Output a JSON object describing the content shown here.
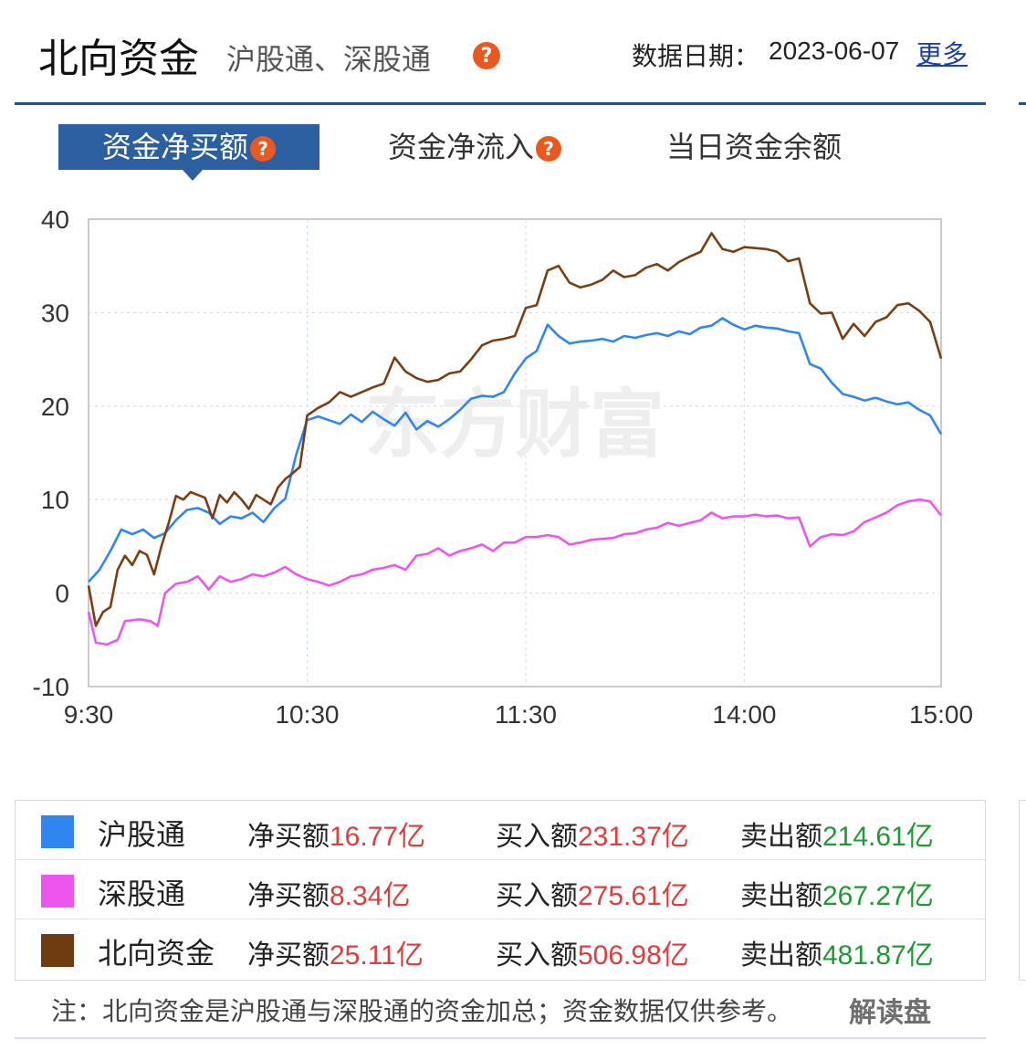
{
  "header": {
    "title": "北向资金",
    "subtitle": "沪股通、深股通",
    "date_label": "数据日期：",
    "date_value": "2023-06-07",
    "more_label": "更多",
    "help_glyph": "?"
  },
  "tabs": [
    {
      "label": "资金净买额",
      "active": true
    },
    {
      "label": "资金净流入",
      "active": false
    },
    {
      "label": "当日资金余额",
      "active": false
    }
  ],
  "watermark": "东方财富",
  "chart_data": {
    "type": "line",
    "x_ticks": [
      "9:30",
      "10:30",
      "11:30",
      "14:00",
      "15:00"
    ],
    "y_ticks": [
      "40",
      "30",
      "20",
      "10",
      "0",
      "-10"
    ],
    "ylim": [
      -10,
      40
    ],
    "grid": true,
    "series": [
      {
        "name": "沪股通",
        "color": "#2f86ee",
        "points": [
          [
            0,
            1.2
          ],
          [
            3,
            2.5
          ],
          [
            6,
            4.5
          ],
          [
            9,
            6.8
          ],
          [
            12,
            6.3
          ],
          [
            15,
            6.8
          ],
          [
            18,
            5.9
          ],
          [
            21,
            6.4
          ],
          [
            24,
            7.8
          ],
          [
            27,
            8.9
          ],
          [
            30,
            9.1
          ],
          [
            33,
            8.6
          ],
          [
            36,
            7.4
          ],
          [
            39,
            8.2
          ],
          [
            42,
            8.0
          ],
          [
            45,
            8.6
          ],
          [
            48,
            7.6
          ],
          [
            51,
            9.1
          ],
          [
            54,
            10.1
          ],
          [
            57,
            14.8
          ],
          [
            60,
            18.5
          ],
          [
            63,
            18.9
          ],
          [
            66,
            18.5
          ],
          [
            69,
            18.1
          ],
          [
            72,
            19.1
          ],
          [
            75,
            18.3
          ],
          [
            78,
            19.4
          ],
          [
            81,
            18.6
          ],
          [
            84,
            17.9
          ],
          [
            87,
            19.3
          ],
          [
            90,
            17.5
          ],
          [
            93,
            18.4
          ],
          [
            96,
            17.8
          ],
          [
            99,
            18.6
          ],
          [
            102,
            19.6
          ],
          [
            105,
            20.8
          ],
          [
            108,
            21.1
          ],
          [
            111,
            21.0
          ],
          [
            114,
            21.5
          ],
          [
            117,
            23.5
          ],
          [
            120,
            25.1
          ],
          [
            123,
            25.9
          ],
          [
            126,
            28.7
          ],
          [
            129,
            27.5
          ],
          [
            132,
            26.7
          ],
          [
            135,
            26.9
          ],
          [
            138,
            27.0
          ],
          [
            141,
            27.2
          ],
          [
            144,
            26.9
          ],
          [
            147,
            27.5
          ],
          [
            150,
            27.3
          ],
          [
            153,
            27.6
          ],
          [
            156,
            27.8
          ],
          [
            159,
            27.5
          ],
          [
            162,
            28.0
          ],
          [
            165,
            27.7
          ],
          [
            168,
            28.4
          ],
          [
            171,
            28.6
          ],
          [
            174,
            29.4
          ],
          [
            177,
            28.7
          ],
          [
            180,
            28.2
          ],
          [
            183,
            28.6
          ],
          [
            186,
            28.4
          ],
          [
            189,
            28.3
          ],
          [
            192,
            28.0
          ],
          [
            195,
            27.8
          ],
          [
            198,
            24.5
          ],
          [
            201,
            24.0
          ],
          [
            204,
            22.5
          ],
          [
            207,
            21.3
          ],
          [
            210,
            21.0
          ],
          [
            213,
            20.6
          ],
          [
            216,
            20.9
          ],
          [
            219,
            20.5
          ],
          [
            222,
            20.2
          ],
          [
            225,
            20.4
          ],
          [
            228,
            19.6
          ],
          [
            231,
            19.0
          ],
          [
            234,
            17.0
          ]
        ]
      },
      {
        "name": "深股通",
        "color": "#ee55ee",
        "points": [
          [
            0,
            -2.0
          ],
          [
            2,
            -5.3
          ],
          [
            5,
            -5.5
          ],
          [
            8,
            -5.0
          ],
          [
            10,
            -3.0
          ],
          [
            14,
            -2.8
          ],
          [
            17,
            -3.0
          ],
          [
            19,
            -3.5
          ],
          [
            21,
            0.0
          ],
          [
            24,
            1.0
          ],
          [
            27,
            1.2
          ],
          [
            30,
            1.8
          ],
          [
            33,
            0.4
          ],
          [
            36,
            1.8
          ],
          [
            39,
            1.2
          ],
          [
            42,
            1.5
          ],
          [
            45,
            2.0
          ],
          [
            48,
            1.8
          ],
          [
            51,
            2.2
          ],
          [
            54,
            2.8
          ],
          [
            57,
            2.0
          ],
          [
            60,
            1.5
          ],
          [
            63,
            1.2
          ],
          [
            66,
            0.8
          ],
          [
            69,
            1.2
          ],
          [
            72,
            1.8
          ],
          [
            75,
            2.0
          ],
          [
            78,
            2.5
          ],
          [
            81,
            2.7
          ],
          [
            84,
            3.0
          ],
          [
            87,
            2.5
          ],
          [
            90,
            4.0
          ],
          [
            93,
            4.2
          ],
          [
            96,
            4.8
          ],
          [
            99,
            4.0
          ],
          [
            102,
            4.5
          ],
          [
            105,
            4.8
          ],
          [
            108,
            5.2
          ],
          [
            111,
            4.5
          ],
          [
            114,
            5.4
          ],
          [
            117,
            5.4
          ],
          [
            120,
            6.0
          ],
          [
            123,
            6.0
          ],
          [
            126,
            6.2
          ],
          [
            129,
            6.0
          ],
          [
            132,
            5.2
          ],
          [
            135,
            5.4
          ],
          [
            138,
            5.7
          ],
          [
            141,
            5.8
          ],
          [
            144,
            5.9
          ],
          [
            147,
            6.3
          ],
          [
            150,
            6.4
          ],
          [
            153,
            6.8
          ],
          [
            156,
            7.0
          ],
          [
            159,
            7.5
          ],
          [
            162,
            7.2
          ],
          [
            165,
            7.5
          ],
          [
            168,
            7.8
          ],
          [
            171,
            8.6
          ],
          [
            174,
            8.0
          ],
          [
            177,
            8.2
          ],
          [
            180,
            8.2
          ],
          [
            183,
            8.4
          ],
          [
            186,
            8.2
          ],
          [
            189,
            8.3
          ],
          [
            192,
            8.0
          ],
          [
            195,
            8.1
          ],
          [
            198,
            5.0
          ],
          [
            201,
            6.0
          ],
          [
            204,
            6.3
          ],
          [
            207,
            6.2
          ],
          [
            210,
            6.6
          ],
          [
            213,
            7.6
          ],
          [
            216,
            8.1
          ],
          [
            219,
            8.6
          ],
          [
            222,
            9.4
          ],
          [
            225,
            9.8
          ],
          [
            228,
            10.0
          ],
          [
            231,
            9.8
          ],
          [
            234,
            8.3
          ]
        ]
      },
      {
        "name": "北向资金",
        "color": "#7a3e12",
        "points": [
          [
            0,
            0.8
          ],
          [
            2,
            -3.5
          ],
          [
            4,
            -2.0
          ],
          [
            6,
            -1.5
          ],
          [
            8,
            2.5
          ],
          [
            10,
            4.0
          ],
          [
            12,
            3.0
          ],
          [
            14,
            4.5
          ],
          [
            16,
            4.1
          ],
          [
            18,
            2.0
          ],
          [
            20,
            5.0
          ],
          [
            22,
            7.5
          ],
          [
            24,
            10.4
          ],
          [
            26,
            10.0
          ],
          [
            28,
            10.8
          ],
          [
            30,
            10.5
          ],
          [
            32,
            10.2
          ],
          [
            34,
            8.0
          ],
          [
            36,
            10.5
          ],
          [
            38,
            9.7
          ],
          [
            40,
            10.8
          ],
          [
            42,
            10.0
          ],
          [
            44,
            9.0
          ],
          [
            46,
            10.5
          ],
          [
            48,
            10.0
          ],
          [
            50,
            9.5
          ],
          [
            52,
            11.3
          ],
          [
            54,
            12.2
          ],
          [
            56,
            12.8
          ],
          [
            58,
            13.5
          ],
          [
            60,
            19.0
          ],
          [
            63,
            19.8
          ],
          [
            66,
            20.4
          ],
          [
            69,
            21.5
          ],
          [
            72,
            21.0
          ],
          [
            75,
            21.5
          ],
          [
            78,
            22.0
          ],
          [
            81,
            22.4
          ],
          [
            84,
            25.2
          ],
          [
            87,
            23.7
          ],
          [
            90,
            23.0
          ],
          [
            93,
            22.6
          ],
          [
            96,
            22.8
          ],
          [
            99,
            23.5
          ],
          [
            102,
            23.7
          ],
          [
            105,
            25.0
          ],
          [
            108,
            26.5
          ],
          [
            111,
            27.0
          ],
          [
            114,
            27.2
          ],
          [
            117,
            27.5
          ],
          [
            120,
            30.5
          ],
          [
            123,
            30.8
          ],
          [
            126,
            34.5
          ],
          [
            129,
            35.0
          ],
          [
            132,
            33.2
          ],
          [
            135,
            32.7
          ],
          [
            138,
            33.0
          ],
          [
            141,
            33.5
          ],
          [
            144,
            34.5
          ],
          [
            147,
            33.8
          ],
          [
            150,
            34.0
          ],
          [
            153,
            34.8
          ],
          [
            156,
            35.2
          ],
          [
            159,
            34.5
          ],
          [
            162,
            35.4
          ],
          [
            165,
            36.0
          ],
          [
            168,
            36.5
          ],
          [
            171,
            38.5
          ],
          [
            174,
            36.8
          ],
          [
            177,
            36.5
          ],
          [
            180,
            37.0
          ],
          [
            183,
            36.9
          ],
          [
            186,
            36.8
          ],
          [
            189,
            36.5
          ],
          [
            192,
            35.5
          ],
          [
            195,
            35.8
          ],
          [
            198,
            31.0
          ],
          [
            201,
            29.9
          ],
          [
            204,
            30.0
          ],
          [
            207,
            27.2
          ],
          [
            210,
            28.8
          ],
          [
            213,
            27.5
          ],
          [
            216,
            29.0
          ],
          [
            219,
            29.5
          ],
          [
            222,
            30.8
          ],
          [
            225,
            31.0
          ],
          [
            228,
            30.2
          ],
          [
            231,
            29.0
          ],
          [
            234,
            25.1
          ]
        ]
      }
    ]
  },
  "legend": {
    "rows": [
      {
        "name": "沪股通",
        "color": "#2f86ee",
        "net_label": "净买额",
        "net_value": "16.77亿",
        "buy_label": "买入额",
        "buy_value": "231.37亿",
        "sell_label": "卖出额",
        "sell_value": "214.61亿"
      },
      {
        "name": "深股通",
        "color": "#ee55ee",
        "net_label": "净买额",
        "net_value": "8.34亿",
        "buy_label": "买入额",
        "buy_value": "275.61亿",
        "sell_label": "卖出额",
        "sell_value": "267.27亿"
      },
      {
        "name": "北向资金",
        "color": "#6e3a10",
        "net_label": "净买额",
        "net_value": "25.11亿",
        "buy_label": "买入额",
        "buy_value": "506.98亿",
        "sell_label": "卖出额",
        "sell_value": "481.87亿"
      }
    ]
  },
  "note": "注：北向资金是沪股通与深股通的资金加总；资金数据仅供参考。",
  "corner_watermark": "解读盘"
}
